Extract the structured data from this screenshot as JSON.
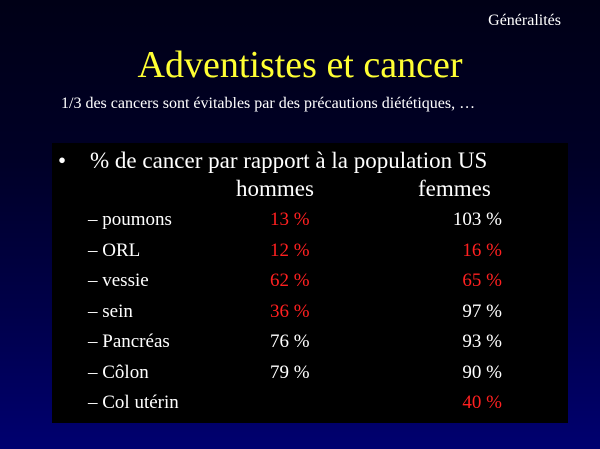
{
  "header": {
    "section": "Généralités",
    "title": "Adventistes et cancer",
    "subtitle": "1/3 des cancers sont évitables par des précautions diététiques, …"
  },
  "colors": {
    "title": "#ffff33",
    "text": "#ffffff",
    "highlight": "#ff2020",
    "panel": "#000000"
  },
  "table": {
    "bullet": "•",
    "heading": "% de cancer par rapport à la population US",
    "col_men": "hommes",
    "col_women": "femmes",
    "rows": [
      {
        "label": "– poumons",
        "men": "13 %",
        "women": "103 %",
        "men_highlight": true,
        "women_highlight": false
      },
      {
        "label": "– ORL",
        "men": "12 %",
        "women": "16 %",
        "men_highlight": true,
        "women_highlight": true
      },
      {
        "label": "– vessie",
        "men": "62 %",
        "women": "65 %",
        "men_highlight": true,
        "women_highlight": true
      },
      {
        "label": "– sein",
        "men": "36 %",
        "women": "97 %",
        "men_highlight": true,
        "women_highlight": false
      },
      {
        "label": "– Pancréas",
        "men": "76 %",
        "women": "93 %",
        "men_highlight": false,
        "women_highlight": false
      },
      {
        "label": "– Côlon",
        "men": "79 %",
        "women": "90 %",
        "men_highlight": false,
        "women_highlight": false
      },
      {
        "label": "– Col utérin",
        "men": "",
        "women": "40 %",
        "men_highlight": false,
        "women_highlight": true
      }
    ]
  }
}
